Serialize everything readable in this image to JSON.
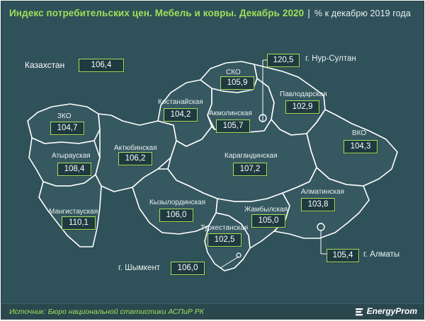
{
  "title": {
    "main": "Индекс потребительских цен. Мебель и ковры. Декабрь 2020",
    "separator": "|",
    "subtitle": "% к декабрю  2019 года"
  },
  "country": {
    "label": "Казахстан",
    "value": "106,4"
  },
  "regions": {
    "sko": {
      "name": "СКО",
      "value": "105,9"
    },
    "kostanay": {
      "name": "Костанайская",
      "value": "104,2"
    },
    "akmola": {
      "name": "Акмолинская",
      "value": "105,7"
    },
    "pavlodar": {
      "name": "Павлодарская",
      "value": "102,9"
    },
    "zko": {
      "name": "ЗКО",
      "value": "104,7"
    },
    "vko": {
      "name": "ВКО",
      "value": "104,3"
    },
    "atyrau": {
      "name": "Атырауская",
      "value": "108,4"
    },
    "aktobe": {
      "name": "Актюбинская",
      "value": "106,2"
    },
    "karaganda": {
      "name": "Карагандинская",
      "value": "107,2"
    },
    "almaty_region": {
      "name": "Алматинская",
      "value": "103,8"
    },
    "kyzylorda": {
      "name": "Кызылординская",
      "value": "106,0"
    },
    "zhambyl": {
      "name": "Жамбылская",
      "value": "105,0"
    },
    "mangistau": {
      "name": "Мангистауская",
      "value": "110,1"
    },
    "turkestan": {
      "name": "Туркестанская",
      "value": "102,5"
    }
  },
  "cities": {
    "nur_sultan": {
      "name": "г. Нур-Султан",
      "value": "120,5"
    },
    "almaty": {
      "name": "г. Алматы",
      "value": "105,4"
    },
    "shymkent": {
      "name": "г. Шымкент",
      "value": "106,0"
    }
  },
  "footer": {
    "source": "Источник: Бюро национальной  статистики АСПиР РК",
    "logo": "EnergyProm"
  },
  "colors": {
    "background": "#2f5159",
    "region_fill": "#365860",
    "accent_green": "#9fe05a",
    "value_box": "#1e3a40"
  }
}
